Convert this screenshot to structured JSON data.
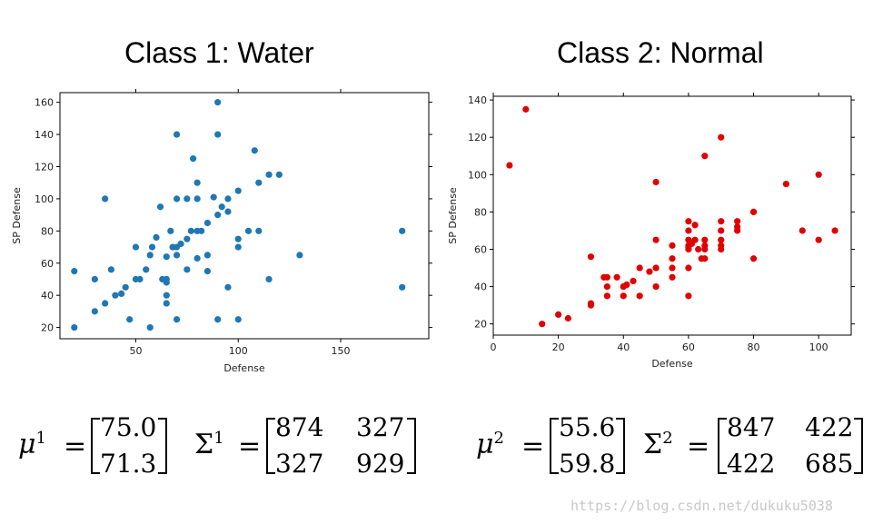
{
  "charts_colors": {
    "water": "#1f77b4",
    "normal": "#e00000"
  },
  "chart_data": [
    {
      "type": "scatter",
      "title": "Class 1: Water",
      "xlabel": "Defense",
      "ylabel": "SP Defense",
      "xlim": [
        13,
        193
      ],
      "ylim": [
        13,
        166
      ],
      "xticks": [
        50,
        100,
        150
      ],
      "yticks": [
        20,
        40,
        60,
        80,
        100,
        120,
        140,
        160
      ],
      "color": "#1f77b4",
      "x": [
        20,
        20,
        30,
        30,
        35,
        35,
        38,
        40,
        43,
        45,
        47,
        50,
        50,
        52,
        55,
        57,
        57,
        58,
        60,
        62,
        63,
        65,
        65,
        65,
        65,
        65,
        67,
        68,
        70,
        70,
        70,
        70,
        70,
        72,
        75,
        75,
        75,
        77,
        78,
        80,
        80,
        80,
        80,
        82,
        85,
        85,
        85,
        88,
        90,
        90,
        90,
        90,
        92,
        95,
        95,
        95,
        100,
        100,
        100,
        100,
        105,
        108,
        110,
        110,
        115,
        115,
        120,
        130,
        180,
        180
      ],
      "y": [
        55,
        20,
        50,
        30,
        35,
        100,
        56,
        40,
        41,
        45,
        25,
        50,
        70,
        50,
        56,
        20,
        65,
        70,
        76,
        95,
        50,
        35,
        40,
        48,
        50,
        64,
        80,
        70,
        100,
        140,
        65,
        70,
        25,
        72,
        56,
        75,
        100,
        80,
        125,
        80,
        110,
        63,
        100,
        80,
        55,
        65,
        85,
        101,
        25,
        90,
        140,
        160,
        95,
        45,
        92,
        100,
        75,
        70,
        105,
        25,
        80,
        130,
        110,
        80,
        115,
        50,
        115,
        65,
        45,
        80
      ]
    },
    {
      "type": "scatter",
      "title": "Class 2: Normal",
      "xlabel": "Defense",
      "ylabel": "SP Defense",
      "xlim": [
        0,
        110
      ],
      "ylim": [
        14,
        142
      ],
      "xticks": [
        0,
        20,
        40,
        60,
        80,
        100
      ],
      "yticks": [
        20,
        40,
        60,
        80,
        100,
        120,
        140
      ],
      "color": "#e00000",
      "x": [
        5,
        10,
        15,
        20,
        23,
        30,
        30,
        30,
        34,
        35,
        35,
        35,
        38,
        40,
        40,
        40,
        41,
        43,
        45,
        45,
        48,
        50,
        50,
        50,
        50,
        55,
        55,
        55,
        55,
        60,
        60,
        60,
        60,
        60,
        60,
        60,
        60,
        61,
        62,
        62,
        63,
        64,
        65,
        65,
        65,
        65,
        65,
        70,
        70,
        70,
        70,
        70,
        70,
        75,
        75,
        75,
        80,
        80,
        80,
        90,
        95,
        100,
        100,
        105
      ],
      "y": [
        105,
        135,
        20,
        25,
        23,
        56,
        30,
        31,
        45,
        35,
        40,
        45,
        45,
        35,
        40,
        40,
        41,
        43,
        50,
        35,
        48,
        96,
        65,
        50,
        40,
        62,
        55,
        50,
        45,
        75,
        70,
        65,
        60,
        62,
        50,
        35,
        61,
        63,
        65,
        73,
        60,
        55,
        65,
        55,
        60,
        62,
        110,
        120,
        75,
        70,
        65,
        62,
        60,
        75,
        72,
        70,
        80,
        80,
        55,
        95,
        70,
        100,
        65,
        70
      ]
    }
  ],
  "formula1": {
    "mu_sym": "μ",
    "mu_sup": "1",
    "eq": "=",
    "mu_vals": [
      "75.0",
      "71.3"
    ],
    "sigma_sym": "Σ",
    "sigma_sup": "1",
    "sigma_vals": [
      [
        "874",
        "327"
      ],
      [
        "327",
        "929"
      ]
    ]
  },
  "formula2": {
    "mu_sym": "μ",
    "mu_sup": "2",
    "eq": "=",
    "mu_vals": [
      "55.6",
      "59.8"
    ],
    "sigma_sym": "Σ",
    "sigma_sup": "2",
    "sigma_vals": [
      [
        "847",
        "422"
      ],
      [
        "422",
        "685"
      ]
    ]
  },
  "watermark": "https://blog.csdn.net/dukuku5038"
}
